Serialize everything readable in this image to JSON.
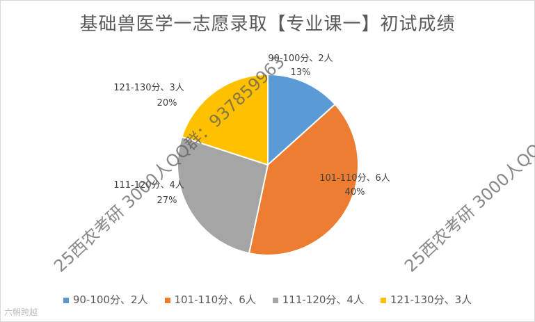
{
  "title": "基础兽医学一志愿录取【专业课一】初试成绩",
  "chart_data": {
    "type": "pie",
    "title": "基础兽医学一志愿录取【专业课一】初试成绩",
    "slices": [
      {
        "name": "90-100分、2人",
        "value": 2,
        "percent": "13%",
        "color": "#5b9bd5"
      },
      {
        "name": "101-110分、6人",
        "value": 6,
        "percent": "40%",
        "color": "#ed7d31"
      },
      {
        "name": "111-120分、4人",
        "value": 4,
        "percent": "27%",
        "color": "#a5a5a5"
      },
      {
        "name": "121-130分、3人",
        "value": 3,
        "percent": "20%",
        "color": "#ffc000"
      }
    ],
    "legend_position": "bottom"
  },
  "watermarks": [
    "25西农考研 3000人QQ群：937859963",
    "25西农考研 3000人QQ"
  ],
  "brand": "六朝跨越"
}
